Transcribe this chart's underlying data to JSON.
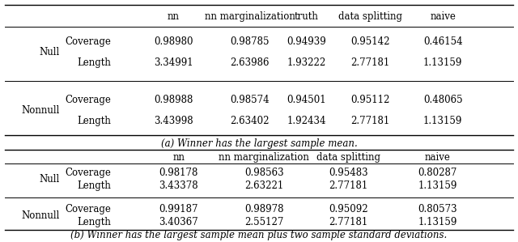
{
  "table_a": {
    "caption": "(a) Winner has the largest sample mean.",
    "col_headers": [
      "nn",
      "nn marginalization",
      "truth",
      "data splitting",
      "naive"
    ],
    "row_groups": [
      "Null",
      "Nonnull"
    ],
    "metrics": [
      "Coverage",
      "Length"
    ],
    "rows": [
      [
        "Null",
        "Coverage",
        "0.98980",
        "0.98785",
        "0.94939",
        "0.95142",
        "0.46154"
      ],
      [
        "Null",
        "Length",
        "3.34991",
        "2.63986",
        "1.93222",
        "2.77181",
        "1.13159"
      ],
      [
        "Nonnull",
        "Coverage",
        "0.98988",
        "0.98574",
        "0.94501",
        "0.95112",
        "0.48065"
      ],
      [
        "Nonnull",
        "Length",
        "3.43998",
        "2.63402",
        "1.92434",
        "2.77181",
        "1.13159"
      ]
    ]
  },
  "table_b": {
    "caption": "(b) Winner has the largest sample mean plus two sample standard deviations.",
    "col_headers": [
      "nn",
      "nn marginalization",
      "data splitting",
      "naive"
    ],
    "row_groups": [
      "Null",
      "Nonnull"
    ],
    "metrics": [
      "Coverage",
      "Length"
    ],
    "rows": [
      [
        "Null",
        "Coverage",
        "0.98178",
        "0.98563",
        "0.95483",
        "0.80287"
      ],
      [
        "Null",
        "Length",
        "3.43378",
        "2.63221",
        "2.77181",
        "1.13159"
      ],
      [
        "Nonnull",
        "Coverage",
        "0.99187",
        "0.98978",
        "0.95092",
        "0.80573"
      ],
      [
        "Nonnull",
        "Length",
        "3.40367",
        "2.55127",
        "2.77181",
        "1.13159"
      ]
    ]
  },
  "fontsize": 8.5,
  "bg_color": "#ffffff"
}
